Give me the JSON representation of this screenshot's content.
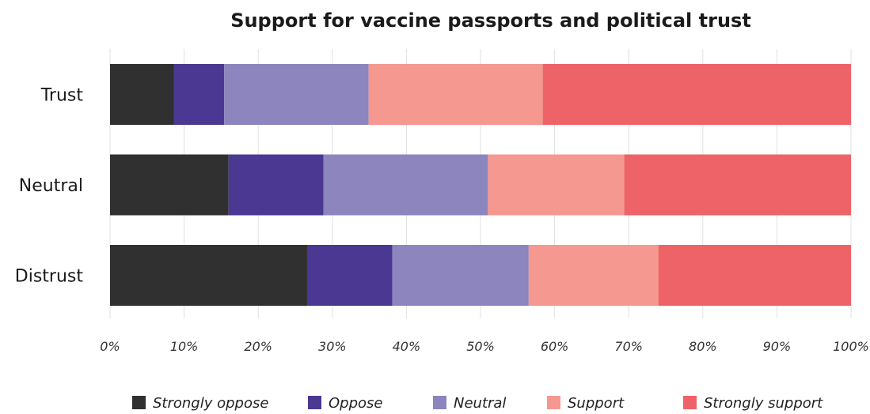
{
  "chart_data": {
    "type": "bar",
    "orientation": "horizontal",
    "stacked": true,
    "title": "Support for vaccine passports and political trust",
    "categories": [
      "Trust",
      "Neutral",
      "Distrust"
    ],
    "series": [
      {
        "name": "Strongly oppose",
        "color": "#303030",
        "values": [
          8.6,
          16.0,
          26.6
        ]
      },
      {
        "name": "Oppose",
        "color": "#4b3893",
        "values": [
          6.8,
          12.8,
          11.5
        ]
      },
      {
        "name": "Neutral",
        "color": "#8c85be",
        "values": [
          19.5,
          22.2,
          18.4
        ]
      },
      {
        "name": "Support",
        "color": "#f49890",
        "values": [
          23.5,
          18.4,
          17.5
        ]
      },
      {
        "name": "Strongly support",
        "color": "#ee6367",
        "values": [
          41.6,
          30.6,
          26.0
        ]
      }
    ],
    "xlim": [
      0,
      100
    ],
    "xticks": [
      "0%",
      "10%",
      "20%",
      "30%",
      "40%",
      "50%",
      "60%",
      "70%",
      "80%",
      "90%",
      "100%"
    ],
    "xlabel": "",
    "ylabel": "",
    "grid": true,
    "legend_position": "bottom"
  }
}
